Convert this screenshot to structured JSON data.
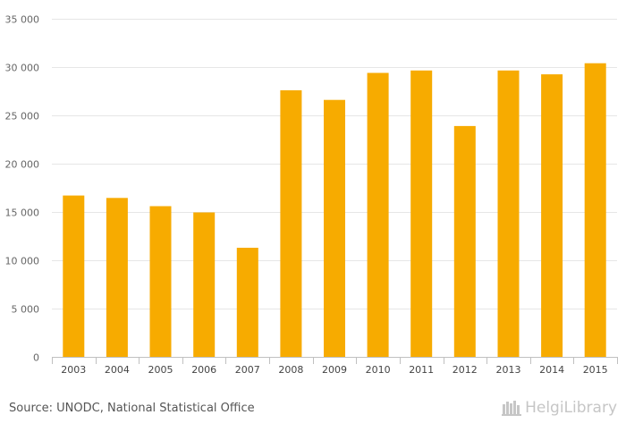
{
  "chart_data": {
    "type": "bar",
    "categories": [
      "2003",
      "2004",
      "2005",
      "2006",
      "2007",
      "2008",
      "2009",
      "2010",
      "2011",
      "2012",
      "2013",
      "2014",
      "2015"
    ],
    "values": [
      16700,
      16450,
      15600,
      14950,
      11300,
      27600,
      26600,
      29400,
      29650,
      23900,
      29650,
      29250,
      30400
    ],
    "ylim": [
      0,
      35000
    ],
    "yticks": [
      0,
      5000,
      10000,
      15000,
      20000,
      25000,
      30000,
      35000
    ],
    "ytick_labels": [
      "0",
      "5 000",
      "10 000",
      "15 000",
      "20 000",
      "25 000",
      "30 000",
      "35 000"
    ],
    "grid": true,
    "bar_color": "#f7ab00",
    "title": "",
    "xlabel": "",
    "ylabel": ""
  },
  "footer": {
    "source": "Source: UNODC, National Statistical Office",
    "brand": "HelgiLibrary",
    "brand_icon": "bookshelf-icon"
  }
}
